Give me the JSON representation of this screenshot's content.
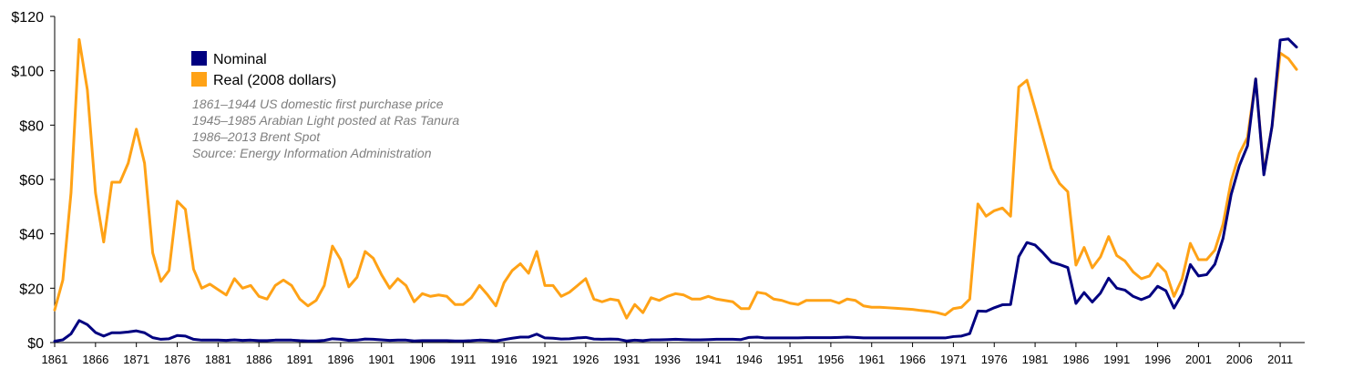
{
  "chart_data": {
    "type": "line",
    "title": "",
    "xlabel": "",
    "ylabel": "",
    "xlim": [
      1861,
      2014
    ],
    "ylim": [
      0,
      120
    ],
    "yticks": [
      0,
      20,
      40,
      60,
      80,
      100,
      120
    ],
    "ytick_labels": [
      "$0",
      "$20",
      "$40",
      "$60",
      "$80",
      "$100",
      "$120"
    ],
    "xticks": [
      1861,
      1866,
      1871,
      1876,
      1881,
      1886,
      1891,
      1896,
      1901,
      1906,
      1911,
      1916,
      1921,
      1926,
      1931,
      1936,
      1941,
      1946,
      1951,
      1956,
      1961,
      1966,
      1971,
      1976,
      1981,
      1986,
      1991,
      1996,
      2001,
      2006,
      2011
    ],
    "grid": false,
    "legend_position": "top-left",
    "notes": [
      "1861–1944 US domestic first purchase price",
      "1945–1985 Arabian Light posted at Ras Tanura",
      "1986–2013 Brent Spot",
      "Source: Energy Information Administration"
    ],
    "series": [
      {
        "name": "Nominal",
        "color": "#000080",
        "points": [
          [
            1861,
            0.5
          ],
          [
            1862,
            1.0
          ],
          [
            1863,
            3.2
          ],
          [
            1864,
            8.1
          ],
          [
            1865,
            6.6
          ],
          [
            1866,
            3.7
          ],
          [
            1867,
            2.4
          ],
          [
            1868,
            3.6
          ],
          [
            1869,
            3.6
          ],
          [
            1870,
            3.9
          ],
          [
            1871,
            4.3
          ],
          [
            1872,
            3.6
          ],
          [
            1873,
            1.8
          ],
          [
            1874,
            1.2
          ],
          [
            1875,
            1.4
          ],
          [
            1876,
            2.6
          ],
          [
            1877,
            2.4
          ],
          [
            1878,
            1.2
          ],
          [
            1879,
            0.9
          ],
          [
            1880,
            0.9
          ],
          [
            1881,
            0.9
          ],
          [
            1882,
            0.8
          ],
          [
            1883,
            1.0
          ],
          [
            1884,
            0.8
          ],
          [
            1885,
            0.9
          ],
          [
            1886,
            0.7
          ],
          [
            1887,
            0.7
          ],
          [
            1888,
            0.9
          ],
          [
            1889,
            0.9
          ],
          [
            1890,
            0.9
          ],
          [
            1891,
            0.7
          ],
          [
            1892,
            0.6
          ],
          [
            1893,
            0.6
          ],
          [
            1894,
            0.8
          ],
          [
            1895,
            1.4
          ],
          [
            1896,
            1.2
          ],
          [
            1897,
            0.8
          ],
          [
            1898,
            0.9
          ],
          [
            1899,
            1.3
          ],
          [
            1900,
            1.2
          ],
          [
            1901,
            1.0
          ],
          [
            1902,
            0.8
          ],
          [
            1903,
            0.9
          ],
          [
            1904,
            0.9
          ],
          [
            1905,
            0.6
          ],
          [
            1906,
            0.7
          ],
          [
            1907,
            0.7
          ],
          [
            1908,
            0.7
          ],
          [
            1909,
            0.7
          ],
          [
            1910,
            0.6
          ],
          [
            1911,
            0.6
          ],
          [
            1912,
            0.7
          ],
          [
            1913,
            0.9
          ],
          [
            1914,
            0.8
          ],
          [
            1915,
            0.6
          ],
          [
            1916,
            1.1
          ],
          [
            1917,
            1.6
          ],
          [
            1918,
            2.0
          ],
          [
            1919,
            2.0
          ],
          [
            1920,
            3.1
          ],
          [
            1921,
            1.7
          ],
          [
            1922,
            1.6
          ],
          [
            1923,
            1.3
          ],
          [
            1924,
            1.4
          ],
          [
            1925,
            1.7
          ],
          [
            1926,
            1.9
          ],
          [
            1927,
            1.3
          ],
          [
            1928,
            1.2
          ],
          [
            1929,
            1.3
          ],
          [
            1930,
            1.2
          ],
          [
            1931,
            0.6
          ],
          [
            1932,
            0.9
          ],
          [
            1933,
            0.7
          ],
          [
            1934,
            1.0
          ],
          [
            1935,
            1.0
          ],
          [
            1936,
            1.1
          ],
          [
            1937,
            1.2
          ],
          [
            1938,
            1.1
          ],
          [
            1939,
            1.0
          ],
          [
            1940,
            1.0
          ],
          [
            1941,
            1.1
          ],
          [
            1942,
            1.2
          ],
          [
            1943,
            1.2
          ],
          [
            1944,
            1.2
          ],
          [
            1945,
            1.1
          ],
          [
            1946,
            1.9
          ],
          [
            1947,
            2.0
          ],
          [
            1948,
            1.7
          ],
          [
            1949,
            1.7
          ],
          [
            1950,
            1.7
          ],
          [
            1951,
            1.7
          ],
          [
            1952,
            1.7
          ],
          [
            1953,
            1.8
          ],
          [
            1954,
            1.8
          ],
          [
            1955,
            1.8
          ],
          [
            1956,
            1.8
          ],
          [
            1957,
            1.9
          ],
          [
            1958,
            2.0
          ],
          [
            1959,
            1.9
          ],
          [
            1960,
            1.7
          ],
          [
            1961,
            1.7
          ],
          [
            1962,
            1.7
          ],
          [
            1963,
            1.7
          ],
          [
            1964,
            1.7
          ],
          [
            1965,
            1.7
          ],
          [
            1966,
            1.7
          ],
          [
            1967,
            1.7
          ],
          [
            1968,
            1.7
          ],
          [
            1969,
            1.7
          ],
          [
            1970,
            1.7
          ],
          [
            1971,
            2.2
          ],
          [
            1972,
            2.4
          ],
          [
            1973,
            3.3
          ],
          [
            1974,
            11.6
          ],
          [
            1975,
            11.5
          ],
          [
            1976,
            12.8
          ],
          [
            1977,
            13.9
          ],
          [
            1978,
            14.0
          ],
          [
            1979,
            31.6
          ],
          [
            1980,
            36.8
          ],
          [
            1981,
            35.9
          ],
          [
            1982,
            32.9
          ],
          [
            1983,
            29.6
          ],
          [
            1984,
            28.7
          ],
          [
            1985,
            27.6
          ],
          [
            1986,
            14.4
          ],
          [
            1987,
            18.4
          ],
          [
            1988,
            14.9
          ],
          [
            1989,
            18.2
          ],
          [
            1990,
            23.7
          ],
          [
            1991,
            20.0
          ],
          [
            1992,
            19.3
          ],
          [
            1993,
            17.0
          ],
          [
            1994,
            15.8
          ],
          [
            1995,
            17.0
          ],
          [
            1996,
            20.7
          ],
          [
            1997,
            19.1
          ],
          [
            1998,
            12.7
          ],
          [
            1999,
            17.9
          ],
          [
            2000,
            28.7
          ],
          [
            2001,
            24.5
          ],
          [
            2002,
            25.0
          ],
          [
            2003,
            28.8
          ],
          [
            2004,
            38.3
          ],
          [
            2005,
            54.5
          ],
          [
            2006,
            65.1
          ],
          [
            2007,
            72.4
          ],
          [
            2008,
            97.0
          ],
          [
            2009,
            61.7
          ],
          [
            2010,
            79.6
          ],
          [
            2011,
            111.3
          ],
          [
            2012,
            111.7
          ],
          [
            2013,
            108.7
          ]
        ]
      },
      {
        "name": "Real (2008 dollars)",
        "color": "#FFA216",
        "points": [
          [
            1861,
            12
          ],
          [
            1862,
            23
          ],
          [
            1863,
            55
          ],
          [
            1864,
            111.5
          ],
          [
            1865,
            93
          ],
          [
            1866,
            55
          ],
          [
            1867,
            37
          ],
          [
            1868,
            59
          ],
          [
            1869,
            59
          ],
          [
            1870,
            66
          ],
          [
            1871,
            78.5
          ],
          [
            1872,
            66
          ],
          [
            1873,
            33
          ],
          [
            1874,
            22.5
          ],
          [
            1875,
            26.5
          ],
          [
            1876,
            52
          ],
          [
            1877,
            49
          ],
          [
            1878,
            27
          ],
          [
            1879,
            20
          ],
          [
            1880,
            21.5
          ],
          [
            1881,
            19.5
          ],
          [
            1882,
            17.5
          ],
          [
            1883,
            23.5
          ],
          [
            1884,
            20
          ],
          [
            1885,
            21
          ],
          [
            1886,
            17
          ],
          [
            1887,
            16
          ],
          [
            1888,
            21
          ],
          [
            1889,
            23
          ],
          [
            1890,
            21
          ],
          [
            1891,
            16
          ],
          [
            1892,
            13.5
          ],
          [
            1893,
            15.5
          ],
          [
            1894,
            21
          ],
          [
            1895,
            35.5
          ],
          [
            1896,
            30.5
          ],
          [
            1897,
            20.5
          ],
          [
            1898,
            24
          ],
          [
            1899,
            33.5
          ],
          [
            1900,
            31
          ],
          [
            1901,
            25
          ],
          [
            1902,
            20
          ],
          [
            1903,
            23.5
          ],
          [
            1904,
            21
          ],
          [
            1905,
            15
          ],
          [
            1906,
            18
          ],
          [
            1907,
            17
          ],
          [
            1908,
            17.5
          ],
          [
            1909,
            17
          ],
          [
            1910,
            14
          ],
          [
            1911,
            14
          ],
          [
            1912,
            16.5
          ],
          [
            1913,
            21
          ],
          [
            1914,
            17.5
          ],
          [
            1915,
            13.5
          ],
          [
            1916,
            22
          ],
          [
            1917,
            26.5
          ],
          [
            1918,
            29
          ],
          [
            1919,
            25.5
          ],
          [
            1920,
            33.5
          ],
          [
            1921,
            21
          ],
          [
            1922,
            21
          ],
          [
            1923,
            17
          ],
          [
            1924,
            18.5
          ],
          [
            1925,
            21
          ],
          [
            1926,
            23.5
          ],
          [
            1927,
            16
          ],
          [
            1928,
            15
          ],
          [
            1929,
            16
          ],
          [
            1930,
            15.5
          ],
          [
            1931,
            9
          ],
          [
            1932,
            14
          ],
          [
            1933,
            11
          ],
          [
            1934,
            16.5
          ],
          [
            1935,
            15.5
          ],
          [
            1936,
            17
          ],
          [
            1937,
            18
          ],
          [
            1938,
            17.5
          ],
          [
            1939,
            16
          ],
          [
            1940,
            16
          ],
          [
            1941,
            17
          ],
          [
            1942,
            16
          ],
          [
            1943,
            15.5
          ],
          [
            1944,
            15
          ],
          [
            1945,
            12.5
          ],
          [
            1946,
            12.5
          ],
          [
            1947,
            18.5
          ],
          [
            1948,
            18
          ],
          [
            1949,
            16
          ],
          [
            1950,
            15.5
          ],
          [
            1951,
            14.5
          ],
          [
            1952,
            14
          ],
          [
            1953,
            15.5
          ],
          [
            1954,
            15.5
          ],
          [
            1955,
            15.5
          ],
          [
            1956,
            15.5
          ],
          [
            1957,
            14.5
          ],
          [
            1958,
            16
          ],
          [
            1959,
            15.5
          ],
          [
            1960,
            13.5
          ],
          [
            1961,
            13
          ],
          [
            1962,
            13
          ],
          [
            1963,
            12.8
          ],
          [
            1964,
            12.6
          ],
          [
            1965,
            12.4
          ],
          [
            1966,
            12.2
          ],
          [
            1967,
            11.8
          ],
          [
            1968,
            11.5
          ],
          [
            1969,
            11
          ],
          [
            1970,
            10.2
          ],
          [
            1971,
            12.5
          ],
          [
            1972,
            13
          ],
          [
            1973,
            16
          ],
          [
            1974,
            51
          ],
          [
            1975,
            46.5
          ],
          [
            1976,
            48.5
          ],
          [
            1977,
            49.5
          ],
          [
            1978,
            46.5
          ],
          [
            1979,
            94
          ],
          [
            1980,
            96.5
          ],
          [
            1981,
            86
          ],
          [
            1982,
            75
          ],
          [
            1983,
            64
          ],
          [
            1984,
            58.5
          ],
          [
            1985,
            55.5
          ],
          [
            1986,
            28.5
          ],
          [
            1987,
            35
          ],
          [
            1988,
            27.5
          ],
          [
            1989,
            31.5
          ],
          [
            1990,
            39
          ],
          [
            1991,
            32
          ],
          [
            1992,
            30
          ],
          [
            1993,
            26
          ],
          [
            1994,
            23.5
          ],
          [
            1995,
            24.5
          ],
          [
            1996,
            29
          ],
          [
            1997,
            26
          ],
          [
            1998,
            17
          ],
          [
            1999,
            23.5
          ],
          [
            2000,
            36.5
          ],
          [
            2001,
            30.5
          ],
          [
            2002,
            30.5
          ],
          [
            2003,
            34
          ],
          [
            2004,
            43.5
          ],
          [
            2005,
            59.5
          ],
          [
            2006,
            69.5
          ],
          [
            2007,
            75.5
          ],
          [
            2008,
            97
          ],
          [
            2009,
            62.5
          ],
          [
            2010,
            79.5
          ],
          [
            2011,
            106.5
          ],
          [
            2012,
            104.5
          ],
          [
            2013,
            100.5
          ]
        ]
      }
    ]
  }
}
